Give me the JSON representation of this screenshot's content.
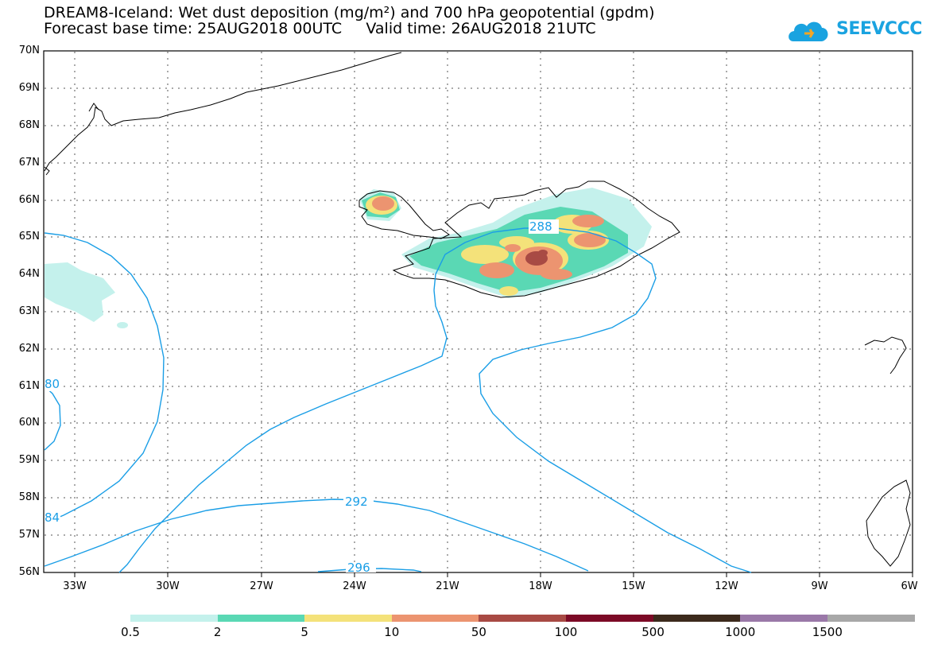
{
  "title_line1": "DREAM8-Iceland: Wet dust deposition (mg/m²) and 700 hPa geopotential (gpdm)",
  "title_line2": "Forecast base time: 25AUG2018 00UTC     Valid time: 26AUG2018 21UTC",
  "logo_text": "SEEVCCC",
  "lat_labels": [
    "70N",
    "69N",
    "68N",
    "67N",
    "66N",
    "65N",
    "64N",
    "63N",
    "62N",
    "61N",
    "60N",
    "59N",
    "58N",
    "57N",
    "56N"
  ],
  "lon_labels": [
    "33W",
    "30W",
    "27W",
    "24W",
    "21W",
    "18W",
    "15W",
    "12W",
    "9W",
    "6W"
  ],
  "contour_labels": [
    "288",
    "292",
    "296",
    "80",
    "84"
  ],
  "colorbar": {
    "thresholds": [
      "0.5",
      "2",
      "5",
      "10",
      "50",
      "100",
      "500",
      "1000",
      "1500"
    ],
    "colors": [
      "#c4f1ec",
      "#5ad8b4",
      "#f4e27a",
      "#ec9470",
      "#a84a44",
      "#7c0a26",
      "#3c2a1c",
      "#9a78a8",
      "#a8a8a8"
    ]
  },
  "colors": {
    "contour": "#1a9ee6",
    "frame": "#000000",
    "grid": "#555555"
  },
  "legend_colors_used": {
    "light": "#c4f1ec",
    "green": "#5ad8b4",
    "yellow": "#f4e27a",
    "orange": "#ec9470",
    "brown": "#a84a44"
  }
}
